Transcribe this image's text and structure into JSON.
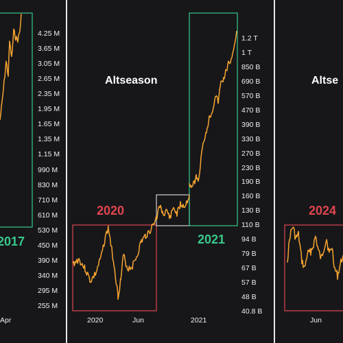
{
  "colors": {
    "background": "#17171a",
    "line": "#f7a531",
    "bull_box": "#39c98a",
    "bear_box": "#e0454f",
    "neutral_box": "#d0d0d0",
    "divider": "#e8e8e8"
  },
  "chart_data": [
    {
      "type": "line",
      "panel": "left",
      "headline": "",
      "year_label": "2017",
      "yticks": [
        "4.25 M",
        "3.65 M",
        "3.05 M",
        "2.65 M",
        "2.35 M",
        "1.95 M",
        "1.65 M",
        "1.35 M",
        "1.15 M",
        "990 M",
        "830 M",
        "710 M",
        "610 M",
        "530 M",
        "450 M",
        "390 M",
        "340 M",
        "295 M",
        "255 M"
      ],
      "xticks": [
        "Apr"
      ],
      "boxes": [
        {
          "kind": "bull",
          "label": "2017"
        }
      ]
    },
    {
      "type": "line",
      "panel": "middle",
      "headline": "Altseason",
      "yticks": [
        "1.2 T",
        "1 T",
        "850 B",
        "690 B",
        "570 B",
        "470 B",
        "390 B",
        "330 B",
        "270 B",
        "230 B",
        "190 B",
        "160 B",
        "130 B",
        "110 B",
        "94 B",
        "79 B",
        "67 B",
        "57 B",
        "48 B",
        "40.8 B"
      ],
      "xticks": [
        "2020",
        "Jun",
        "2021"
      ],
      "boxes": [
        {
          "kind": "bear",
          "label": "2020"
        },
        {
          "kind": "neutral",
          "label": ""
        },
        {
          "kind": "bull",
          "label": "2021"
        }
      ]
    },
    {
      "type": "line",
      "panel": "right",
      "headline": "Altse",
      "yticks": [],
      "xticks": [
        "Jun"
      ],
      "boxes": [
        {
          "kind": "bear",
          "label": "2024"
        }
      ]
    }
  ]
}
